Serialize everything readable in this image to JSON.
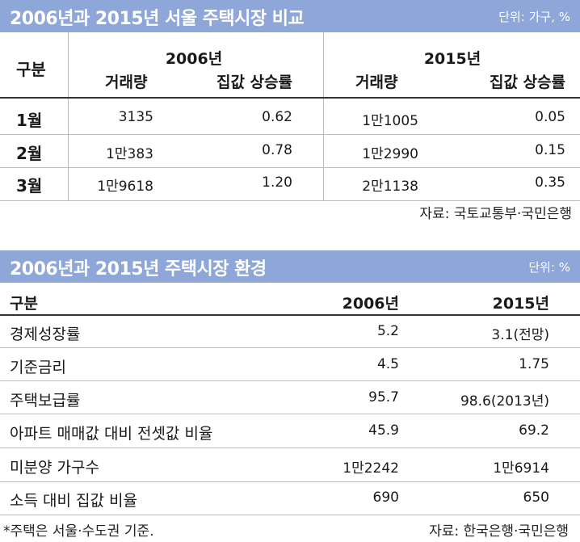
{
  "table1": {
    "title": "2006년과 2015년 서울 주택시장 비교",
    "unit": "단위: 가구, %",
    "group_label": "구분",
    "year_a": "2006년",
    "year_b": "2015년",
    "col_volume": "거래량",
    "col_price": "집값 상승률",
    "rows": [
      {
        "label": "1월",
        "vol_a": "3135",
        "price_a": "0.62",
        "vol_b": "1만1005",
        "price_b": "0.05"
      },
      {
        "label": "2월",
        "vol_a": "1만383",
        "price_a": "0.78",
        "vol_b": "1만2990",
        "price_b": "0.15"
      },
      {
        "label": "3월",
        "vol_a": "1만9618",
        "price_a": "1.20",
        "vol_b": "2만1138",
        "price_b": "0.35"
      }
    ],
    "source": "자료: 국토교통부·국민은행"
  },
  "table2": {
    "title": "2006년과 2015년 주택시장 환경",
    "unit": "단위: %",
    "col_label": "구분",
    "col_a": "2006년",
    "col_b": "2015년",
    "rows": [
      {
        "label": "경제성장률",
        "a": "5.2",
        "b": "3.1(전망)"
      },
      {
        "label": "기준금리",
        "a": "4.5",
        "b": "1.75"
      },
      {
        "label": "주택보급률",
        "a": "95.7",
        "b": "98.6(2013년)"
      },
      {
        "label": "아파트 매매값 대비 전셋값 비율",
        "a": "45.9",
        "b": "69.2"
      },
      {
        "label": "미분양 가구수",
        "a": "1만2242",
        "b": "1만6914"
      },
      {
        "label": "소득 대비 집값 비율",
        "a": "690",
        "b": "650"
      }
    ],
    "footnote": "*주택은 서울·수도권 기준.",
    "source": "자료: 한국은행·국민은행"
  }
}
